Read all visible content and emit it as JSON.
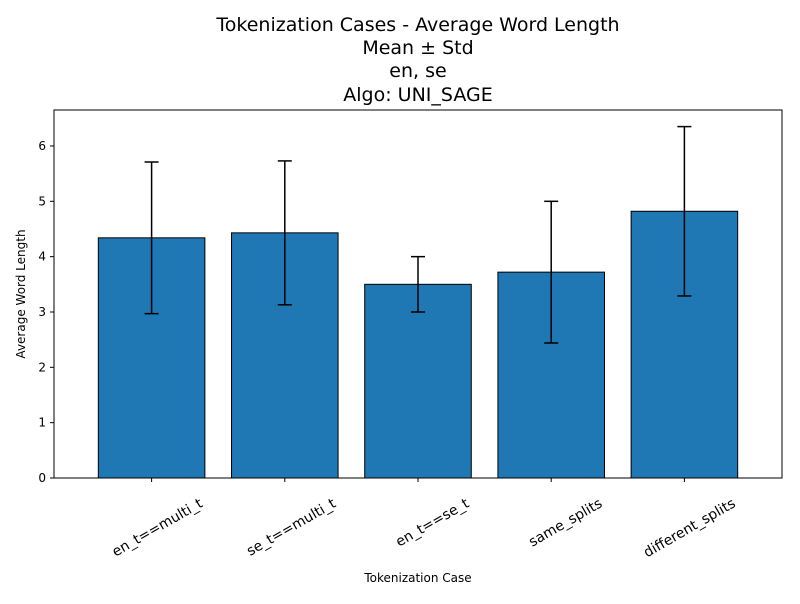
{
  "chart_data": {
    "type": "bar",
    "title_lines": [
      "Tokenization Cases - Average Word Length",
      "Mean ± Std",
      "en, se",
      "Algo: UNI_SAGE"
    ],
    "xlabel": "Tokenization Case",
    "ylabel": "Average Word Length",
    "categories": [
      "en_t==multi_t",
      "se_t==multi_t",
      "en_t==se_t",
      "same_splits",
      "different_splits"
    ],
    "values": [
      4.34,
      4.43,
      3.5,
      3.72,
      4.82
    ],
    "errors": [
      1.37,
      1.3,
      0.5,
      1.28,
      1.53
    ],
    "ylim": [
      0,
      6.65
    ],
    "yticks": [
      0,
      1,
      2,
      3,
      4,
      5,
      6
    ],
    "ytick_labels": [
      "0",
      "1",
      "2",
      "3",
      "4",
      "5",
      "6"
    ],
    "grid": false,
    "bar_color": "#1f77b4",
    "bar_edge_color": "#000000",
    "error_color": "#000000",
    "xtick_rotation_deg": 30
  }
}
